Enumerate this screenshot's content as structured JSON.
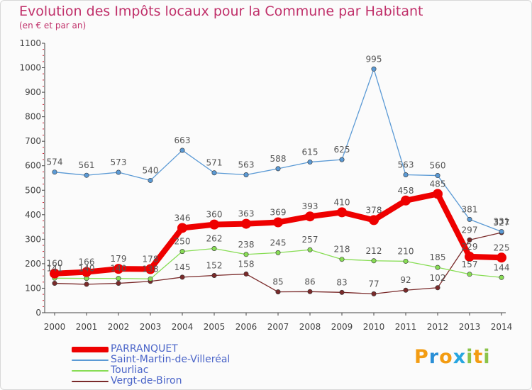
{
  "colors": {
    "title": "#c0306a",
    "axis": "#444444",
    "label": "#555555",
    "tick_red": "#cc2233"
  },
  "chart_data": {
    "type": "line",
    "title": "Evolution des Impôts locaux pour la Commune par Habitant",
    "subtitle": "(en € et par an)",
    "xlabel": "",
    "ylabel": "",
    "ylim": [
      0,
      1100
    ],
    "yticks": [
      0,
      100,
      200,
      300,
      400,
      500,
      600,
      700,
      800,
      900,
      1000,
      1100
    ],
    "grid": false,
    "legend_position": "bottom-left",
    "x": [
      "2000",
      "2001",
      "2002",
      "2003",
      "2004",
      "2005",
      "2006",
      "2007",
      "2008",
      "2009",
      "2010",
      "2011",
      "2012",
      "2013",
      "2014"
    ],
    "series": [
      {
        "name": "Vergt-de-Biron",
        "color": "#7a2a2a",
        "width": "thin",
        "values": [
          120,
          116,
          120,
          128,
          145,
          152,
          158,
          85,
          86,
          83,
          77,
          92,
          102,
          297,
          327
        ]
      },
      {
        "name": "Tourliac",
        "color": "#88dd55",
        "width": "thin",
        "values": [
          141,
          140,
          140,
          138,
          250,
          262,
          238,
          245,
          257,
          218,
          212,
          210,
          185,
          157,
          144
        ]
      },
      {
        "name": "Saint-Martin-de-Villeréal",
        "color": "#5b9ad5",
        "width": "thin",
        "values": [
          574,
          561,
          573,
          540,
          663,
          571,
          563,
          588,
          615,
          625,
          995,
          563,
          560,
          381,
          331
        ]
      },
      {
        "name": "PARRANQUET",
        "color": "#ee0000",
        "width": "thick",
        "values": [
          160,
          166,
          179,
          178,
          346,
          360,
          363,
          369,
          393,
          410,
          378,
          458,
          485,
          229,
          225
        ]
      }
    ],
    "data_labels": {
      "PARRANQUET": [
        "160",
        "166",
        "179",
        "178",
        "346",
        "360",
        "363",
        "369",
        "393",
        "410",
        "378",
        "458",
        "485",
        "229",
        "225"
      ],
      "Saint-Martin-de-Villeréal": [
        "574",
        "561",
        "573",
        "540",
        "663",
        "571",
        "563",
        "588",
        "615",
        "625",
        "995",
        "563",
        "560",
        "381",
        "331"
      ],
      "Tourliac": [
        "141",
        "140",
        "140",
        "138",
        "250",
        "262",
        "238",
        "245",
        "257",
        "218",
        "212",
        "210",
        "185",
        "157",
        "144"
      ],
      "Vergt-de-Biron": [
        "",
        "",
        "",
        "",
        "145",
        "152",
        "158",
        "85",
        "86",
        "83",
        "77",
        "92",
        "102",
        "297",
        "327"
      ]
    }
  },
  "legend": [
    {
      "label": "PARRANQUET",
      "color": "#ee0000",
      "width": "thick"
    },
    {
      "label": "Saint-Martin-de-Villeréal",
      "color": "#5b9ad5",
      "width": "thin"
    },
    {
      "label": "Tourliac",
      "color": "#88dd55",
      "width": "thin"
    },
    {
      "label": "Vergt-de-Biron",
      "color": "#7a2a2a",
      "width": "thin"
    }
  ],
  "logo": {
    "letters": [
      "P",
      "r",
      "o",
      "x",
      "i",
      "t",
      "i"
    ],
    "colors": [
      "#f39c12",
      "#2a8fd6",
      "#f39c12",
      "#27a6e0",
      "#8bc34a",
      "#f39c12",
      "#8bc34a"
    ]
  }
}
